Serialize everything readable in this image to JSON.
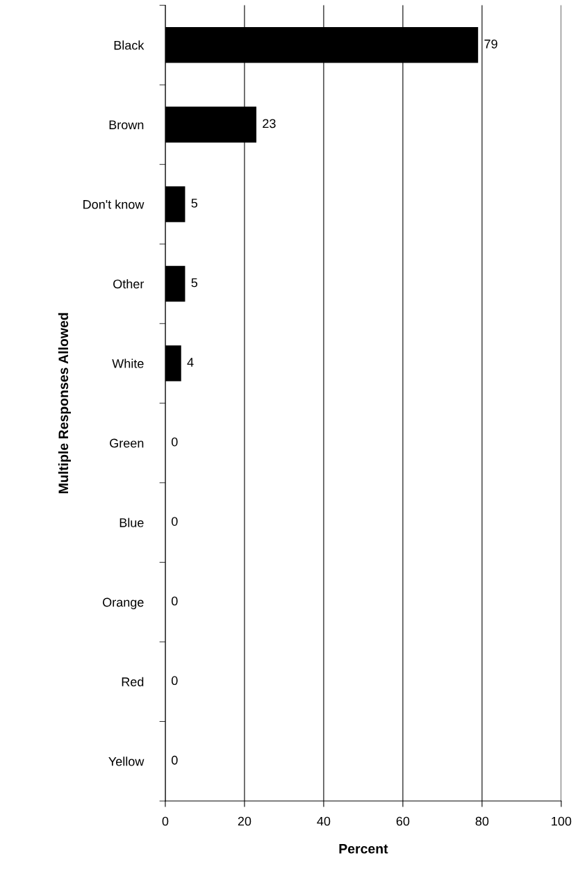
{
  "chart_data": {
    "type": "bar",
    "orientation": "horizontal",
    "xlabel": "Percent",
    "ylabel": "Multiple Responses Allowed",
    "categories": [
      "Black",
      "Brown",
      "Don't know",
      "Other",
      "White",
      "Green",
      "Blue",
      "Orange",
      "Red",
      "Yellow"
    ],
    "values": [
      79,
      23,
      5,
      5,
      4,
      0,
      0,
      0,
      0,
      0
    ],
    "color": "#000000",
    "xlim": [
      0,
      100
    ],
    "xticks": [
      0,
      20,
      40,
      60,
      80,
      100
    ],
    "grid": "x",
    "data_labels": true
  }
}
